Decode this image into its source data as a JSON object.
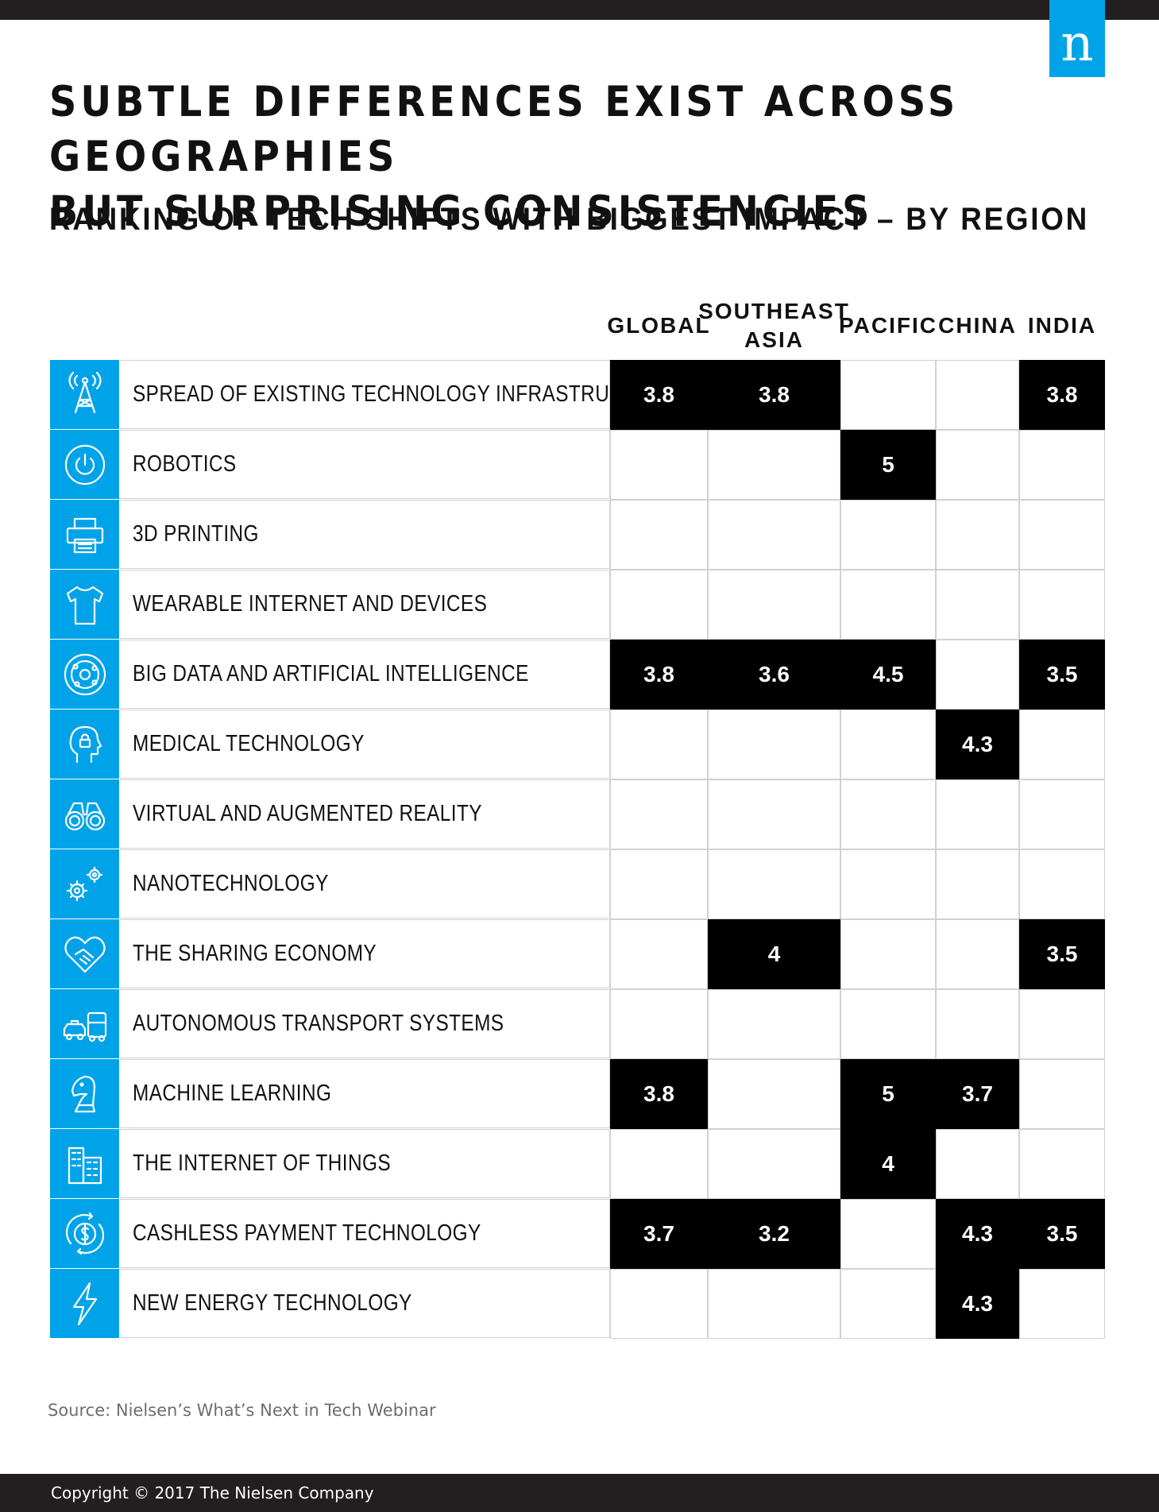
{
  "header": {
    "title": "SUBTLE DIFFERENCES EXIST ACROSS GEOGRAPHIES\nBUT SURPRISING CONSISTENCIES",
    "subtitle": "RANKING OF TECH SHIFTS WITH BIGGEST IMPACT – BY REGION",
    "logo": "n"
  },
  "colors": {
    "accent": "#00a3e8",
    "filled_cell": "#000000",
    "bar": "#231f20",
    "grid_line": "#cfd1d3"
  },
  "chart_data": {
    "type": "table",
    "title": "SUBTLE DIFFERENCES EXIST ACROSS GEOGRAPHIES BUT SURPRISING CONSISTENCIES",
    "subtitle": "RANKING OF TECH SHIFTS WITH BIGGEST IMPACT – BY REGION",
    "columns": [
      "GLOBAL",
      "SOUTHEAST\nASIA",
      "PACIFIC",
      "CHINA",
      "INDIA"
    ],
    "rows": [
      {
        "label": "SPREAD OF EXISTING TECHNOLOGY INFRASTRUCTURE",
        "icon": "antenna-tower-icon",
        "values": [
          3.8,
          3.8,
          null,
          null,
          3.8
        ]
      },
      {
        "label": "ROBOTICS",
        "icon": "power-button-icon",
        "values": [
          null,
          null,
          5,
          null,
          null
        ]
      },
      {
        "label": "3D PRINTING",
        "icon": "printer-icon",
        "values": [
          null,
          null,
          null,
          null,
          null
        ]
      },
      {
        "label": "WEARABLE INTERNET AND DEVICES",
        "icon": "t-shirt-icon",
        "values": [
          null,
          null,
          null,
          null,
          null
        ]
      },
      {
        "label": "BIG DATA AND ARTIFICIAL INTELLIGENCE",
        "icon": "network-circle-icon",
        "values": [
          3.8,
          3.6,
          4.5,
          null,
          3.5
        ]
      },
      {
        "label": "MEDICAL TECHNOLOGY",
        "icon": "head-lock-icon",
        "values": [
          null,
          null,
          null,
          4.3,
          null
        ]
      },
      {
        "label": "VIRTUAL AND AUGMENTED REALITY",
        "icon": "binoculars-icon",
        "values": [
          null,
          null,
          null,
          null,
          null
        ]
      },
      {
        "label": "NANOTECHNOLOGY",
        "icon": "gears-icon",
        "values": [
          null,
          null,
          null,
          null,
          null
        ]
      },
      {
        "label": "THE SHARING ECONOMY",
        "icon": "handshake-heart-icon",
        "values": [
          null,
          4,
          null,
          null,
          3.5
        ]
      },
      {
        "label": "AUTONOMOUS TRANSPORT SYSTEMS",
        "icon": "taxi-bus-icon",
        "values": [
          null,
          null,
          null,
          null,
          null
        ]
      },
      {
        "label": "MACHINE LEARNING",
        "icon": "chess-knight-icon",
        "values": [
          3.8,
          null,
          5,
          3.7,
          null
        ]
      },
      {
        "label": "THE INTERNET OF THINGS",
        "icon": "buildings-icon",
        "values": [
          null,
          null,
          4,
          null,
          null
        ]
      },
      {
        "label": "CASHLESS PAYMENT TECHNOLOGY",
        "icon": "dollar-coin-icon",
        "values": [
          3.7,
          3.2,
          null,
          4.3,
          3.5
        ]
      },
      {
        "label": "NEW ENERGY TECHNOLOGY",
        "icon": "lightning-bolt-icon",
        "values": [
          null,
          null,
          null,
          4.3,
          null
        ]
      }
    ]
  },
  "source": "Source: Nielsen’s What’s Next in Tech Webinar",
  "footer": {
    "copyright": "Copyright © 2017 The Nielsen Company"
  }
}
